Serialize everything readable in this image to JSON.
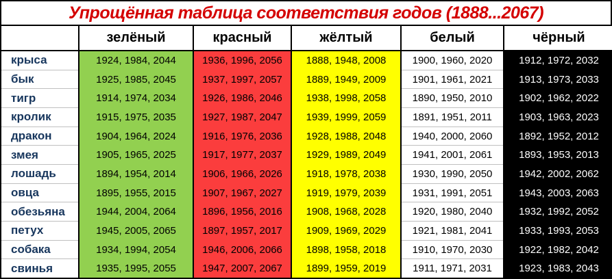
{
  "title": "Упрощённая таблица соответствия годов (1888...2067)",
  "title_color": "#d40000",
  "animal_label_color": "#17365d",
  "separator_color": "#bfbfbf",
  "header": {
    "columns": [
      {
        "id": "green",
        "label": "зелёный",
        "bg": "#92d050",
        "text": "#000000"
      },
      {
        "id": "red",
        "label": "красный",
        "bg": "#fb3d3d",
        "text": "#000000"
      },
      {
        "id": "yellow",
        "label": "жёлтый",
        "bg": "#ffff00",
        "text": "#000000"
      },
      {
        "id": "white",
        "label": "белый",
        "bg": "#ffffff",
        "text": "#000000"
      },
      {
        "id": "black",
        "label": "чёрный",
        "bg": "#000000",
        "text": "#ffffff"
      }
    ]
  },
  "rows": [
    {
      "animal": "крыса",
      "years": [
        "1924, 1984, 2044",
        "1936, 1996, 2056",
        "1888, 1948, 2008",
        "1900, 1960, 2020",
        "1912, 1972, 2032"
      ]
    },
    {
      "animal": "бык",
      "years": [
        "1925, 1985, 2045",
        "1937, 1997, 2057",
        "1889, 1949, 2009",
        "1901, 1961, 2021",
        "1913, 1973, 2033"
      ]
    },
    {
      "animal": "тигр",
      "years": [
        "1914, 1974, 2034",
        "1926, 1986, 2046",
        "1938, 1998, 2058",
        "1890, 1950, 2010",
        "1902, 1962, 2022"
      ]
    },
    {
      "animal": "кролик",
      "years": [
        "1915, 1975, 2035",
        "1927, 1987, 2047",
        "1939, 1999, 2059",
        "1891, 1951, 2011",
        "1903, 1963, 2023"
      ]
    },
    {
      "animal": "дракон",
      "years": [
        "1904, 1964, 2024",
        "1916, 1976, 2036",
        "1928, 1988, 2048",
        "1940, 2000, 2060",
        "1892, 1952, 2012"
      ]
    },
    {
      "animal": "змея",
      "years": [
        "1905, 1965, 2025",
        "1917, 1977, 2037",
        "1929, 1989, 2049",
        "1941, 2001, 2061",
        "1893, 1953, 2013"
      ]
    },
    {
      "animal": "лошадь",
      "years": [
        "1894, 1954, 2014",
        "1906, 1966, 2026",
        "1918, 1978, 2038",
        "1930, 1990, 2050",
        "1942, 2002, 2062"
      ]
    },
    {
      "animal": "овца",
      "years": [
        "1895, 1955, 2015",
        "1907, 1967, 2027",
        "1919, 1979, 2039",
        "1931, 1991, 2051",
        "1943, 2003, 2063"
      ]
    },
    {
      "animal": "обезьяна",
      "years": [
        "1944, 2004, 2064",
        "1896, 1956, 2016",
        "1908, 1968, 2028",
        "1920, 1980, 2040",
        "1932, 1992, 2052"
      ]
    },
    {
      "animal": "петух",
      "years": [
        "1945, 2005, 2065",
        "1897, 1957, 2017",
        "1909, 1969, 2029",
        "1921, 1981, 2041",
        "1933, 1993, 2053"
      ]
    },
    {
      "animal": "собака",
      "years": [
        "1934, 1994, 2054",
        "1946, 2006, 2066",
        "1898, 1958, 2018",
        "1910, 1970, 2030",
        "1922, 1982, 2042"
      ]
    },
    {
      "animal": "свинья",
      "years": [
        "1935, 1995, 2055",
        "1947, 2007, 2067",
        "1899, 1959, 2019",
        "1911, 1971, 2031",
        "1923, 1983, 2043"
      ]
    }
  ]
}
